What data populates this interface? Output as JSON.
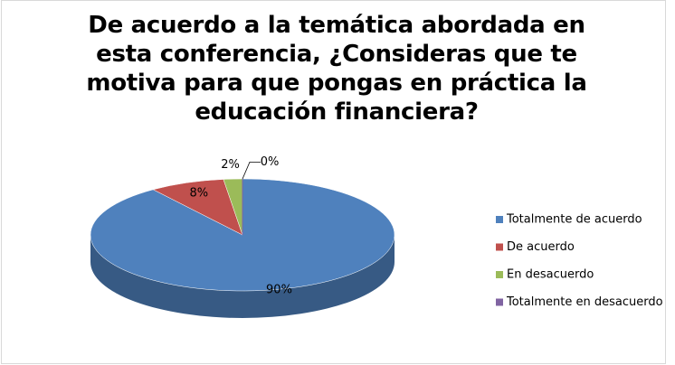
{
  "chart_data": {
    "type": "pie",
    "title": "De acuerdo a la temática abordada en esta conferencia, ¿Consideras que te motiva para que pongas en práctica la educación financiera?",
    "categories": [
      "Totalmente de acuerdo",
      "De acuerdo",
      "En desacuerdo",
      "Totalmente en desacuerdo"
    ],
    "values": [
      90,
      8,
      2,
      0
    ],
    "value_labels": [
      "90%",
      "8%",
      "2%",
      "0%"
    ],
    "colors": [
      "#4f81bd",
      "#c0504d",
      "#9bbb59",
      "#8064a2"
    ],
    "legend": "right"
  }
}
